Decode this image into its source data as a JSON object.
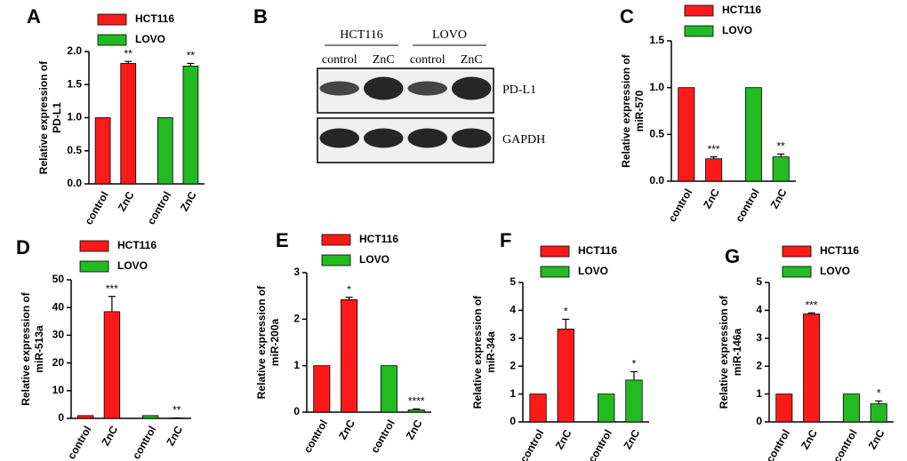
{
  "chart_data": [
    {
      "type": "bar",
      "label": "A",
      "ylabel": [
        "Relative  expression of",
        "PD-L1"
      ],
      "categories": [
        "control",
        "ZnC",
        "control",
        "ZnC"
      ],
      "ylim": [
        0,
        2
      ],
      "yticks": [
        {
          "value": 0,
          "label": "0.0"
        },
        {
          "value": 0.5,
          "label": "0.5"
        },
        {
          "value": 1,
          "label": "1.0"
        },
        {
          "value": 1.5,
          "label": "1.5"
        },
        {
          "value": 2,
          "label": "2.0"
        }
      ],
      "series": [
        {
          "name": "HCT116",
          "color": "#ff1a1a",
          "values": [
            1,
            1.82,
            null,
            null
          ],
          "errors": [
            null,
            0.03,
            null,
            null
          ],
          "significance": [
            null,
            "**",
            null,
            null
          ]
        },
        {
          "name": "LOVO",
          "color": "#22bb22",
          "values": [
            null,
            null,
            1,
            1.78
          ],
          "errors": [
            null,
            null,
            null,
            0.04
          ],
          "significance": [
            null,
            null,
            null,
            "**"
          ]
        }
      ]
    },
    {
      "type": "blot",
      "label": "B",
      "groups": [
        "HCT116",
        "LOVO"
      ],
      "lanes": [
        "control",
        "ZnC",
        "control",
        "ZnC"
      ],
      "rows": [
        "PD-L1",
        "GAPDH"
      ]
    },
    {
      "type": "bar",
      "label": "C",
      "ylabel": [
        "Relative  expression of",
        "miR-570"
      ],
      "categories": [
        "control",
        "ZnC",
        "control",
        "ZnC"
      ],
      "ylim": [
        0,
        1.5
      ],
      "yticks": [
        {
          "value": 0,
          "label": "0.0"
        },
        {
          "value": 0.5,
          "label": "0.5"
        },
        {
          "value": 1,
          "label": "1.0"
        },
        {
          "value": 1.5,
          "label": "1.5"
        }
      ],
      "series": [
        {
          "name": "HCT116",
          "color": "#ff1a1a",
          "values": [
            1,
            0.24,
            null,
            null
          ],
          "errors": [
            null,
            0.02,
            null,
            null
          ],
          "significance": [
            null,
            "***",
            null,
            null
          ]
        },
        {
          "name": "LOVO",
          "color": "#22bb22",
          "values": [
            null,
            null,
            1,
            0.26
          ],
          "errors": [
            null,
            null,
            null,
            0.03
          ],
          "significance": [
            null,
            null,
            null,
            "**"
          ]
        }
      ]
    },
    {
      "type": "bar",
      "label": "D",
      "ylabel": [
        "Relative  expression of",
        "miR-513a"
      ],
      "categories": [
        "control",
        "ZnC",
        "control",
        "ZnC"
      ],
      "ylim": [
        0,
        50
      ],
      "yticks": [
        0,
        10,
        20,
        30,
        40,
        50
      ],
      "series": [
        {
          "name": "HCT116",
          "color": "#ff1a1a",
          "values": [
            1,
            38.5,
            null,
            null
          ],
          "errors": [
            null,
            5.5,
            null,
            null
          ],
          "significance": [
            null,
            "***",
            null,
            null
          ]
        },
        {
          "name": "LOVO",
          "color": "#22bb22",
          "values": [
            null,
            null,
            1,
            0.1
          ],
          "errors": [
            null,
            null,
            null,
            0.05
          ],
          "significance": [
            null,
            null,
            null,
            "**"
          ]
        }
      ]
    },
    {
      "type": "bar",
      "label": "E",
      "ylabel": [
        "Relative  expression of",
        "miR-200a"
      ],
      "categories": [
        "control",
        "ZnC",
        "control",
        "ZnC"
      ],
      "ylim": [
        0,
        3
      ],
      "yticks": [
        0,
        1,
        2,
        3
      ],
      "series": [
        {
          "name": "HCT116",
          "color": "#ff1a1a",
          "values": [
            1,
            2.42,
            null,
            null
          ],
          "errors": [
            null,
            0.05,
            null,
            null
          ],
          "significance": [
            null,
            "*",
            null,
            null
          ]
        },
        {
          "name": "LOVO",
          "color": "#22bb22",
          "values": [
            null,
            null,
            1,
            0.05
          ],
          "errors": [
            null,
            null,
            null,
            0.02
          ],
          "significance": [
            null,
            null,
            null,
            "****"
          ]
        }
      ]
    },
    {
      "type": "bar",
      "label": "F",
      "ylabel": [
        "Relative  expression of",
        "miR-34a"
      ],
      "categories": [
        "control",
        "ZnC",
        "control",
        "ZnC"
      ],
      "ylim": [
        0,
        5
      ],
      "yticks": [
        0,
        1,
        2,
        3,
        4,
        5
      ],
      "series": [
        {
          "name": "HCT116",
          "color": "#ff1a1a",
          "values": [
            1,
            3.33,
            null,
            null
          ],
          "errors": [
            null,
            0.35,
            null,
            null
          ],
          "significance": [
            null,
            "*",
            null,
            null
          ]
        },
        {
          "name": "LOVO",
          "color": "#22bb22",
          "values": [
            null,
            null,
            1,
            1.5
          ],
          "errors": [
            null,
            null,
            null,
            0.3
          ],
          "significance": [
            null,
            null,
            null,
            "*"
          ]
        }
      ]
    },
    {
      "type": "bar",
      "label": "G",
      "ylabel": [
        "Relative  expression of",
        "miR-146a"
      ],
      "categories": [
        "control",
        "ZnC",
        "control",
        "ZnC"
      ],
      "ylim": [
        0,
        5
      ],
      "yticks": [
        0,
        1,
        2,
        3,
        4,
        5
      ],
      "series": [
        {
          "name": "HCT116",
          "color": "#ff1a1a",
          "values": [
            1,
            3.87,
            null,
            null
          ],
          "errors": [
            null,
            0.04,
            null,
            null
          ],
          "significance": [
            null,
            "***",
            null,
            null
          ]
        },
        {
          "name": "LOVO",
          "color": "#22bb22",
          "values": [
            null,
            null,
            1,
            0.65
          ],
          "errors": [
            null,
            null,
            null,
            0.1
          ],
          "significance": [
            null,
            null,
            null,
            "*"
          ]
        }
      ]
    }
  ]
}
